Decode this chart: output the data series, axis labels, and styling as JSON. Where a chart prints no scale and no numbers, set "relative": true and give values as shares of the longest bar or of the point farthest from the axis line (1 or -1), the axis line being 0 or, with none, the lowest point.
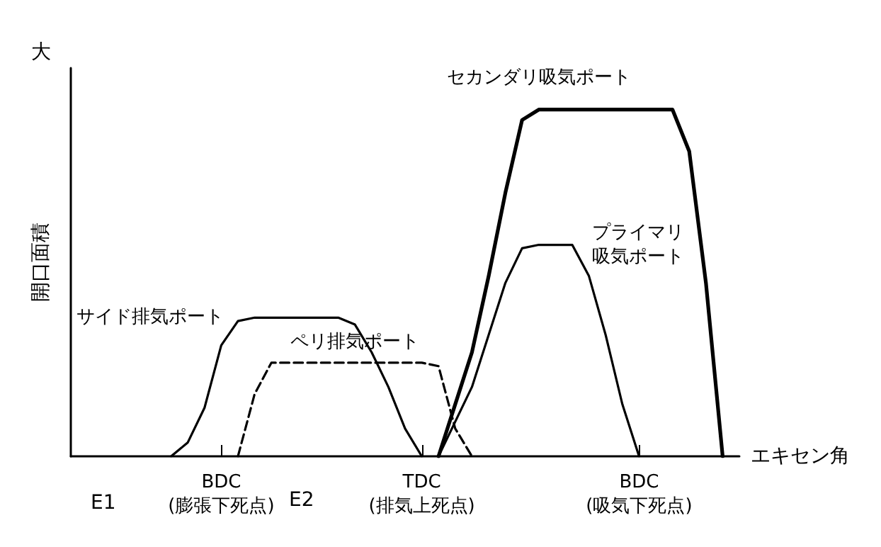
{
  "chart_data": {
    "type": "line",
    "relative": true,
    "xlabel": "エキセン角",
    "ylabel": "開口面積",
    "categories": [
      null,
      null,
      null,
      null,
      null,
      null,
      null,
      null,
      null,
      "BDC\n(膨張下死点)",
      null,
      null,
      null,
      null,
      null,
      null,
      null,
      null,
      null,
      null,
      null,
      "TDC\n(排気上死点)",
      null,
      null,
      null,
      null,
      null,
      null,
      null,
      null,
      null,
      null,
      null,
      null,
      "BDC\n(吸気下死点)",
      null,
      null,
      null,
      null,
      null,
      null
    ],
    "tick_labels": "x",
    "grid": false,
    "legend": false,
    "marker": "none",
    "annotations": [
      "大",
      "E1",
      "E2"
    ],
    "series": [
      {
        "name": "サイド排気ポート",
        "color": "#000000",
        "values": [
          null,
          null,
          null,
          null,
          null,
          null,
          0,
          0.04,
          0.14,
          0.32,
          0.39,
          0.4,
          0.4,
          0.4,
          0.4,
          0.4,
          0.4,
          0.38,
          0.3,
          0.2,
          0.08,
          0,
          null,
          null,
          null,
          null,
          null,
          null,
          null,
          null,
          null,
          null,
          null,
          null,
          null,
          null,
          null,
          null,
          null,
          null,
          null
        ]
      },
      {
        "name": "ペリ排気ポート",
        "color": "#000000",
        "line_style": "dashed",
        "values": [
          null,
          null,
          null,
          null,
          null,
          null,
          null,
          null,
          null,
          null,
          0,
          0.18,
          0.27,
          0.27,
          0.27,
          0.27,
          0.27,
          0.27,
          0.27,
          0.27,
          0.27,
          0.27,
          0.26,
          0.08,
          0,
          null,
          null,
          null,
          null,
          null,
          null,
          null,
          null,
          null,
          null,
          null,
          null,
          null,
          null,
          null,
          null
        ]
      },
      {
        "name": "セカンダリ吸気ポート",
        "color": "#000000",
        "values": [
          null,
          null,
          null,
          null,
          null,
          null,
          null,
          null,
          null,
          null,
          null,
          null,
          null,
          null,
          null,
          null,
          null,
          null,
          null,
          null,
          null,
          null,
          0,
          0.15,
          0.3,
          0.52,
          0.76,
          0.97,
          1,
          1,
          1,
          1,
          1,
          1,
          1,
          1,
          1,
          0.88,
          0.5,
          0,
          null
        ]
      },
      {
        "name": "プライマリ吸気ポート",
        "color": "#000000",
        "values": [
          null,
          null,
          null,
          null,
          null,
          null,
          null,
          null,
          null,
          null,
          null,
          null,
          null,
          null,
          null,
          null,
          null,
          null,
          null,
          null,
          null,
          null,
          0,
          0.1,
          0.2,
          0.35,
          0.5,
          0.6,
          0.61,
          0.61,
          0.61,
          0.52,
          0.35,
          0.15,
          0,
          null,
          null,
          null,
          null,
          null,
          null
        ]
      }
    ]
  }
}
